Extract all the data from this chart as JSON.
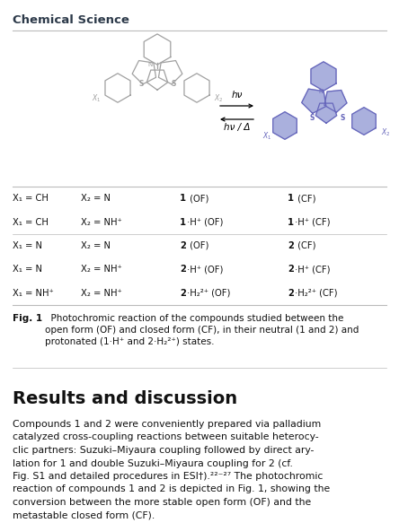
{
  "title": "Chemical Science",
  "title_color": "#2d3a4a",
  "title_fontsize": 9.5,
  "section_heading": "Results and discussion",
  "section_fontsize": 14,
  "bg_color": "#ffffff",
  "text_color": "#1a1a1a",
  "line_color": "#bbbbbb",
  "table_rows": [
    [
      "X₁ = CH",
      "X₂ = N",
      "1 (OF)",
      "1 (CF)"
    ],
    [
      "X₁ = CH",
      "X₂ = NH⁺",
      "1·H⁺ (OF)",
      "1·H⁺ (CF)"
    ],
    [
      "X₁ = N",
      "X₂ = N",
      "2 (OF)",
      "2 (CF)"
    ],
    [
      "X₁ = N",
      "X₂ = NH⁺",
      "2·H⁺ (OF)",
      "2·H⁺ (CF)"
    ],
    [
      "X₁ = NH⁺",
      "X₂ = NH⁺",
      "2·H₂²⁺ (OF)",
      "2·H₂²⁺ (CF)"
    ]
  ],
  "gray": "#a0a0a0",
  "blue": "#6666bb",
  "bluefill": "#aab0dd",
  "body_text_lines": [
    "Compounds 1 and 2 were conveniently prepared via palladium",
    "catalyzed cross-coupling reactions between suitable heterocy-",
    "clic partners: Suzuki–Miyaura coupling followed by direct ary-",
    "lation for 1 and double Suzuki–Miyaura coupling for 2 (cf.",
    "Fig. S1 and detailed procedures in ESI†).²²⁻²⁷ The photochromic",
    "reaction of compounds 1 and 2 is depicted in Fig. 1, showing the",
    "conversion between the more stable open form (OF) and the",
    "metastable closed form (CF)."
  ]
}
